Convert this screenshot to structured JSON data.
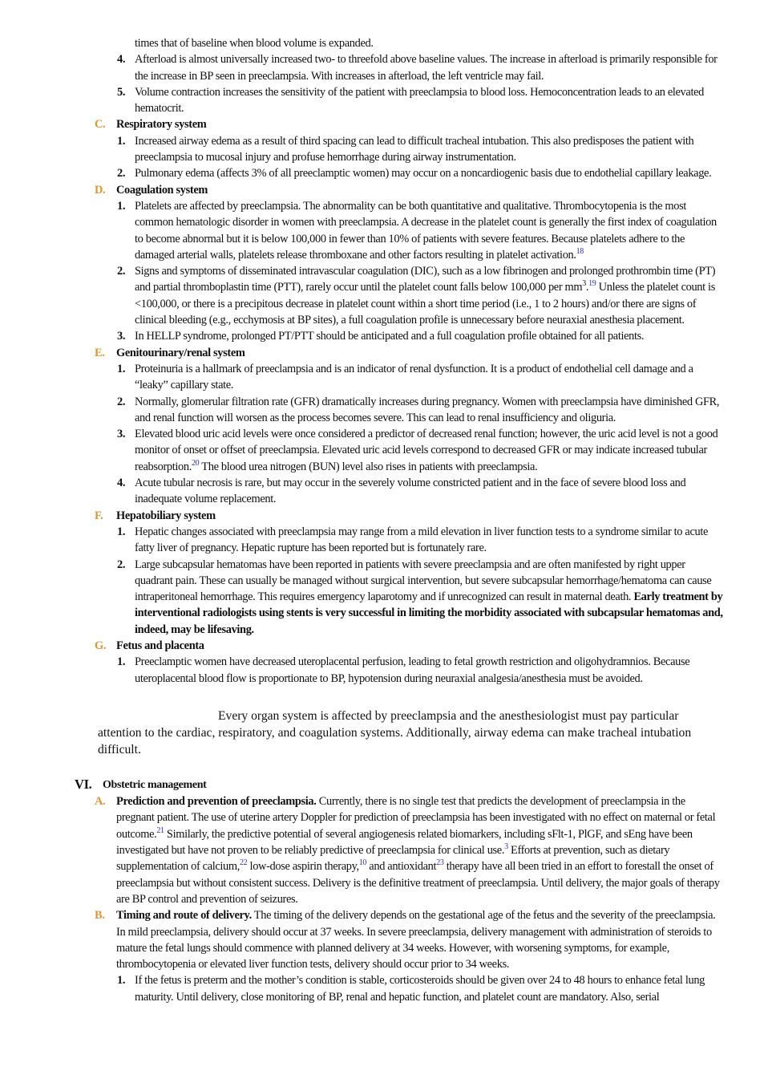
{
  "part_v": {
    "continued": {
      "text": [
        "times that of baseline when blood volume is expanded."
      ]
    },
    "items": [
      {
        "num": "4.",
        "text": [
          "Afterload is almost universally increased two- to threefold above baseline values. The increase in afterload is primarily responsible for the increase in BP seen in preeclampsia. With increases in afterload, the left ventricle may fail."
        ]
      },
      {
        "num": "5.",
        "text": [
          "Volume contraction increases the sensitivity of the patient with preeclampsia to blood loss. Hemoconcentration leads to an elevated hematocrit."
        ]
      }
    ],
    "subsections": [
      {
        "label": "C.",
        "heading": "Respiratory system",
        "items": [
          {
            "num": "1.",
            "text": [
              "Increased airway edema as a result of third spacing can lead to difficult tracheal intubation. This also predisposes the patient with preeclampsia to mucosal injury and profuse hemorrhage during airway instrumentation."
            ]
          },
          {
            "num": "2.",
            "text": [
              "Pulmonary edema (affects 3% of all preeclamptic women) may occur on a noncardiogenic basis due to endothelial capillary leakage."
            ]
          }
        ]
      },
      {
        "label": "D.",
        "heading": "Coagulation system",
        "items": [
          {
            "num": "1.",
            "text": [
              "Platelets are affected by preeclampsia. The abnormality can be both quantitative and qualitative. Thrombocytopenia is the most common hematologic disorder in women with preeclampsia. A decrease in the platelet count is generally the first index of coagulation to become abnormal but it is below 100,000 in fewer than 10% of patients with severe features. Because platelets adhere to the damaged arterial walls, platelets release thromboxane and other factors resulting in platelet activation.",
              {
                "ref": "18"
              }
            ]
          },
          {
            "num": "2.",
            "text": [
              "Signs and symptoms of disseminated intravascular coagulation (DIC), such as a low fibrinogen and prolonged prothrombin time (PT) and partial thromboplastin time (PTT), rarely occur until the platelet count falls below 100,000 per mm",
              {
                "sup": "3"
              },
              ".",
              {
                "ref": "19"
              },
              " Unless the platelet count is <100,000, or there is a precipitous decrease in platelet count within a short time period (i.e., 1 to 2 hours) and/or there are signs of clinical bleeding (e.g., ecchymosis at BP sites), a full coagulation profile is unnecessary before neuraxial anesthesia placement."
            ]
          },
          {
            "num": "3.",
            "text": [
              "In HELLP syndrome, prolonged PT/PTT should be anticipated and a full coagulation profile obtained for all patients."
            ]
          }
        ]
      },
      {
        "label": "E.",
        "heading": "Genitourinary/renal system",
        "items": [
          {
            "num": "1.",
            "text": [
              "Proteinuria is a hallmark of preeclampsia and is an indicator of renal dysfunction. It is a product of endothelial cell damage and a “leaky” capillary state."
            ]
          },
          {
            "num": "2.",
            "text": [
              "Normally, glomerular filtration rate (GFR) dramatically increases during pregnancy. Women with preeclampsia have diminished GFR, and renal function will worsen as the process becomes severe. This can lead to renal insufficiency and oliguria."
            ]
          },
          {
            "num": "3.",
            "text": [
              "Elevated blood uric acid levels were once considered a predictor of decreased renal function; however, the uric acid level is not a good monitor of onset or offset of preeclampsia. Elevated uric acid levels correspond to decreased GFR or may indicate increased tubular reabsorption.",
              {
                "ref": "20"
              },
              " The blood urea nitrogen (BUN) level also rises in patients with preeclampsia."
            ]
          },
          {
            "num": "4.",
            "text": [
              "Acute tubular necrosis is rare, but may occur in the severely volume constricted patient and in the face of severe blood loss and inadequate volume replacement."
            ]
          }
        ]
      },
      {
        "label": "F.",
        "heading": "Hepatobiliary system",
        "items": [
          {
            "num": "1.",
            "text": [
              "Hepatic changes associated with preeclampsia may range from a mild elevation in liver function tests to a syndrome similar to acute fatty liver of pregnancy. Hepatic rupture has been reported but is fortunately rare."
            ]
          },
          {
            "num": "2.",
            "text": [
              "Large subcapsular hematomas have been reported in patients with severe preeclampsia and are often manifested by right upper quadrant pain. These can usually be managed without surgical intervention, but severe subcapsular hemorrhage/hematoma can cause intraperitoneal hemorrhage. This requires emergency laparotomy and if unrecognized can result in maternal death. ",
              {
                "b": "Early treatment by interventional radiologists using stents is very successful in limiting the morbidity associated with subcapsular hematomas and, indeed, may be lifesaving."
              }
            ]
          }
        ]
      },
      {
        "label": "G.",
        "heading": "Fetus and placenta",
        "items": [
          {
            "num": "1.",
            "text": [
              "Preeclamptic women have decreased uteroplacental perfusion, leading to fetal growth restriction and oligohydramnios. Because uteroplacental blood flow is proportionate to BP, hypotension during neuraxial analgesia/anesthesia must be avoided."
            ]
          }
        ]
      }
    ]
  },
  "key_point": "Every organ system is affected by preeclampsia and the anesthesiologist must pay particular attention to the cardiac, respiratory, and coagulation systems. Additionally, airway edema can make tracheal intubation difficult.",
  "section_vi": {
    "numeral": "VI.",
    "heading": "Obstetric management",
    "subsections": [
      {
        "label": "A.",
        "heading": "Prediction and prevention of preeclampsia.",
        "text": [
          " Currently, there is no single test that predicts the development of preeclampsia in the pregnant patient. The use of uterine artery Doppler for prediction of preeclampsia has been investigated with no effect on maternal or fetal outcome.",
          {
            "ref": "21"
          },
          " Similarly, the predictive potential of several angiogenesis related biomarkers, including sFlt-1, PlGF, and sEng have been investigated but have not proven to be reliably predictive of preeclampsia for clinical use.",
          {
            "ref": "3"
          },
          " Efforts at prevention, such as dietary supplementation of calcium,",
          {
            "ref": "22"
          },
          " low-dose aspirin therapy,",
          {
            "ref": "10"
          },
          " and antioxidant",
          {
            "ref": "23"
          },
          " therapy have all been tried in an effort to forestall the onset of preeclampsia but without consistent success. Delivery is the definitive treatment of preeclampsia. Until delivery, the major goals of therapy are BP control and prevention of seizures."
        ],
        "items": []
      },
      {
        "label": "B.",
        "heading": "Timing and route of delivery.",
        "text": [
          " The timing of the delivery depends on the gestational age of the fetus and the severity of the preeclampsia. In mild preeclampsia, delivery should occur at 37 weeks. In severe preeclampsia, delivery management with administration of steroids to mature the fetal lungs should commence with planned delivery at 34 weeks. However, with worsening symptoms, for example, thrombocytopenia or elevated liver function tests, delivery should occur prior to 34 weeks."
        ],
        "items": [
          {
            "num": "1.",
            "text": [
              "If the fetus is preterm and the mother’s condition is stable, corticosteroids should be given over 24 to 48 hours to enhance fetal lung maturity. Until delivery, close monitoring of BP, renal and hepatic function, and platelet count are mandatory. Also, serial"
            ]
          }
        ]
      }
    ]
  }
}
